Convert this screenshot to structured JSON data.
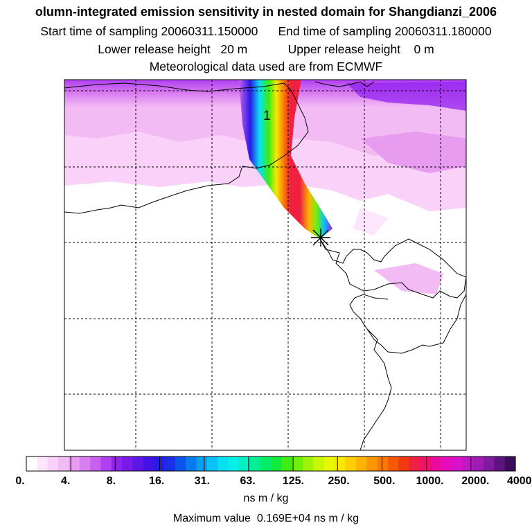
{
  "header": {
    "title": "olumn-integrated emission sensitivity in nested domain for Shangdianzi_2006",
    "start_label": "Start time of sampling",
    "start_value": "20060311.150000",
    "end_label": "End time of sampling",
    "end_value": "20060311.180000",
    "lower_label": "Lower release height",
    "lower_value": "20 m",
    "upper_label": "Upper release height",
    "upper_value": "0 m",
    "met_text": "Meteorological data used are from ECMWF"
  },
  "map": {
    "plume_label": "1",
    "release_marker": "receptor-star"
  },
  "colorbar": {
    "tick_labels": [
      "0.",
      "4.",
      "8.",
      "16.",
      "31.",
      "63.",
      "125.",
      "250.",
      "500.",
      "1000.",
      "2000.",
      "4000."
    ],
    "colors": [
      "#ffffff",
      "#fde6fd",
      "#f9d1f9",
      "#f3bbf4",
      "#e79cf0",
      "#d97ef0",
      "#c75ff0",
      "#b03ef2",
      "#9321f0",
      "#7a1ae8",
      "#5d16e6",
      "#4113e6",
      "#2a1ae6",
      "#1a30e8",
      "#0d55ea",
      "#0a7bef",
      "#0aa0f3",
      "#0ac2f5",
      "#08e0f2",
      "#06f0e6",
      "#04f0c2",
      "#04ee96",
      "#06ec66",
      "#10ea3a",
      "#3cec12",
      "#6ef00a",
      "#9ef408",
      "#c8f806",
      "#e8f804",
      "#f8e802",
      "#fcd000",
      "#fcb400",
      "#fb9800",
      "#fa7a00",
      "#f65a00",
      "#f23a10",
      "#f02040",
      "#f01070",
      "#ec0a9c",
      "#e60cbc",
      "#d812c8",
      "#c018c4",
      "#a01ab4",
      "#801a9e",
      "#5e1480",
      "#3c0c5c"
    ],
    "units": "ns m / kg"
  },
  "footer": {
    "max_label": "Maximum value",
    "max_value": "0.169E+04",
    "max_units": "ns m / kg"
  }
}
